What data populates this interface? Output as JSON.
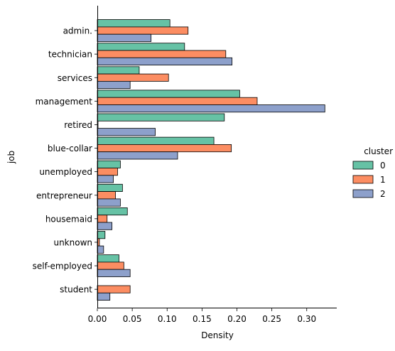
{
  "chart_data": {
    "type": "bar",
    "orientation": "horizontal",
    "ylabel": "job",
    "xlabel": "Density",
    "categories": [
      "admin.",
      "technician",
      "services",
      "management",
      "retired",
      "blue-collar",
      "unemployed",
      "entrepreneur",
      "housemaid",
      "unknown",
      "self-employed",
      "student"
    ],
    "series": [
      {
        "name": "0",
        "color": "#66c2a5",
        "values": [
          0.104,
          0.125,
          0.06,
          0.204,
          0.182,
          0.167,
          0.033,
          0.036,
          0.043,
          0.011,
          0.031,
          0.0
        ]
      },
      {
        "name": "1",
        "color": "#fc8d62",
        "values": [
          0.13,
          0.184,
          0.102,
          0.229,
          0.001,
          0.192,
          0.029,
          0.026,
          0.014,
          0.003,
          0.038,
          0.047
        ]
      },
      {
        "name": "2",
        "color": "#8da0cb",
        "values": [
          0.077,
          0.193,
          0.047,
          0.326,
          0.083,
          0.115,
          0.023,
          0.033,
          0.021,
          0.009,
          0.047,
          0.018
        ]
      }
    ],
    "xlim": [
      0.0,
      0.34
    ],
    "xticks": [
      0.0,
      0.05,
      0.1,
      0.15,
      0.2,
      0.25,
      0.3
    ],
    "xtick_labels": [
      "0.00",
      "0.05",
      "0.10",
      "0.15",
      "0.20",
      "0.25",
      "0.30"
    ],
    "grid": false,
    "legend": {
      "title": "cluster",
      "placement": "right",
      "labels": [
        "0",
        "1",
        "2"
      ]
    }
  }
}
